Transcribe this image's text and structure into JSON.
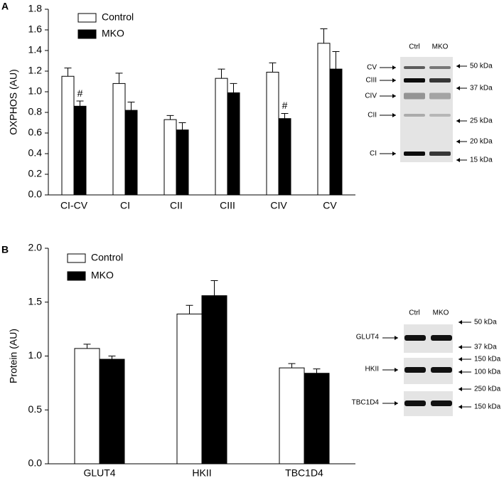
{
  "chart_data": [
    {
      "type": "bar",
      "panel": "A",
      "ylabel": "OXPHOS (AU)",
      "categories": [
        "CI-CV",
        "CI",
        "CII",
        "CIII",
        "CIV",
        "CV"
      ],
      "series": [
        {
          "name": "Control",
          "color": "#ffffff",
          "values": [
            1.15,
            1.08,
            0.73,
            1.13,
            1.19,
            1.47
          ],
          "errors": [
            0.08,
            0.1,
            0.04,
            0.09,
            0.09,
            0.14
          ]
        },
        {
          "name": "MKO",
          "color": "#000000",
          "values": [
            0.86,
            0.82,
            0.63,
            0.99,
            0.74,
            1.22
          ],
          "errors": [
            0.05,
            0.08,
            0.07,
            0.09,
            0.05,
            0.17
          ],
          "labels": [
            "#",
            null,
            null,
            null,
            "#",
            null
          ]
        }
      ],
      "ylim": [
        0,
        1.8
      ],
      "yticks": [
        {
          "value": 0,
          "label": "0.0"
        },
        {
          "value": 0.2,
          "label": "0.2"
        },
        {
          "value": 0.4,
          "label": "0.4"
        },
        {
          "value": 0.6,
          "label": "0.6"
        },
        {
          "value": 0.8,
          "label": "0.8"
        },
        {
          "value": 1,
          "label": "1.0"
        },
        {
          "value": 1.2,
          "label": "1.2"
        },
        {
          "value": 1.4,
          "label": "1.4"
        },
        {
          "value": 1.6,
          "label": "1.6"
        },
        {
          "value": 1.8,
          "label": "1.8"
        }
      ],
      "blot": {
        "lanes": [
          "Ctrl",
          "MKO"
        ],
        "bands": [
          "CV",
          "CIII",
          "CIV",
          "CII",
          "CI"
        ],
        "markers": [
          "50 kDa",
          "37 kDa",
          "25 kDa",
          "20 kDa",
          "15 kDa"
        ]
      }
    },
    {
      "type": "bar",
      "panel": "B",
      "ylabel": "Protein (AU)",
      "categories": [
        "GLUT4",
        "HKII",
        "TBC1D4"
      ],
      "series": [
        {
          "name": "Control",
          "color": "#ffffff",
          "values": [
            1.07,
            1.39,
            0.89
          ],
          "errors": [
            0.04,
            0.08,
            0.04
          ]
        },
        {
          "name": "MKO",
          "color": "#000000",
          "values": [
            0.97,
            1.56,
            0.84
          ],
          "errors": [
            0.03,
            0.14,
            0.04
          ]
        }
      ],
      "ylim": [
        0,
        2
      ],
      "yticks": [
        {
          "value": 0,
          "label": "0.0"
        },
        {
          "value": 0.5,
          "label": "0.5"
        },
        {
          "value": 1,
          "label": "1.0"
        },
        {
          "value": 1.5,
          "label": "1.5"
        },
        {
          "value": 2,
          "label": "2.0"
        }
      ],
      "blot": {
        "lanes": [
          "Ctrl",
          "MKO"
        ],
        "bands": [
          "GLUT4",
          "HKII",
          "TBC1D4"
        ],
        "markers": [
          "50 kDa",
          "37 kDa",
          "150 kDa",
          "100 kDa",
          "250 kDa",
          "150 kDa"
        ]
      }
    }
  ]
}
